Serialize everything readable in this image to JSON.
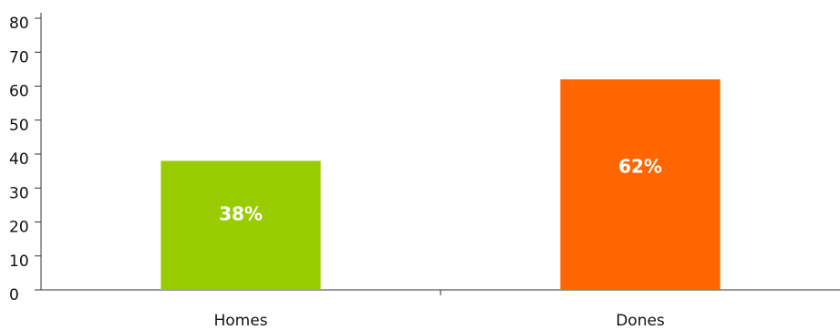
{
  "chart_data": {
    "type": "bar",
    "categories": [
      "Homes",
      "Dones"
    ],
    "values": [
      38,
      62
    ],
    "value_labels": [
      "38%",
      "62%"
    ],
    "colors": [
      "#99cc00",
      "#ff6600"
    ],
    "ylim": [
      0,
      80
    ],
    "yticks": [
      0,
      10,
      20,
      30,
      40,
      50,
      60,
      70,
      80
    ]
  }
}
